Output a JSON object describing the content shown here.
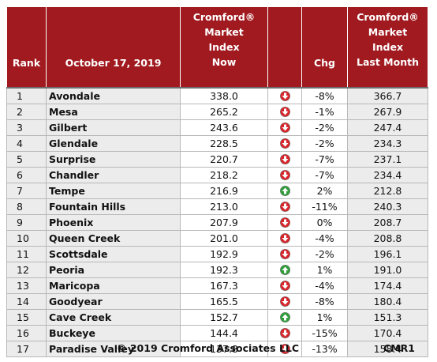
{
  "header": {
    "rank": "Rank",
    "date": "October 17, 2019",
    "now_lines": [
      "Cromford®",
      "Market",
      "Index",
      "Now"
    ],
    "chg": "Chg",
    "last_lines": [
      "Cromford®",
      "Market",
      "Index",
      "Last Month"
    ]
  },
  "rows": [
    {
      "rank": "1",
      "name": "Avondale",
      "now": "338.0",
      "dir": "down",
      "chg": "-8%",
      "last": "366.7"
    },
    {
      "rank": "2",
      "name": "Mesa",
      "now": "265.2",
      "dir": "down",
      "chg": "-1%",
      "last": "267.9"
    },
    {
      "rank": "3",
      "name": "Gilbert",
      "now": "243.6",
      "dir": "down",
      "chg": "-2%",
      "last": "247.4"
    },
    {
      "rank": "4",
      "name": "Glendale",
      "now": "228.5",
      "dir": "down",
      "chg": "-2%",
      "last": "234.3"
    },
    {
      "rank": "5",
      "name": "Surprise",
      "now": "220.7",
      "dir": "down",
      "chg": "-7%",
      "last": "237.1"
    },
    {
      "rank": "6",
      "name": "Chandler",
      "now": "218.2",
      "dir": "down",
      "chg": "-7%",
      "last": "234.4"
    },
    {
      "rank": "7",
      "name": "Tempe",
      "now": "216.9",
      "dir": "up",
      "chg": "2%",
      "last": "212.8"
    },
    {
      "rank": "8",
      "name": "Fountain Hills",
      "now": "213.0",
      "dir": "down",
      "chg": "-11%",
      "last": "240.3"
    },
    {
      "rank": "9",
      "name": "Phoenix",
      "now": "207.9",
      "dir": "down",
      "chg": "0%",
      "last": "208.7"
    },
    {
      "rank": "10",
      "name": "Queen Creek",
      "now": "201.0",
      "dir": "down",
      "chg": "-4%",
      "last": "208.8"
    },
    {
      "rank": "11",
      "name": "Scottsdale",
      "now": "192.9",
      "dir": "down",
      "chg": "-2%",
      "last": "196.1"
    },
    {
      "rank": "12",
      "name": "Peoria",
      "now": "192.3",
      "dir": "up",
      "chg": "1%",
      "last": "191.0"
    },
    {
      "rank": "13",
      "name": "Maricopa",
      "now": "167.3",
      "dir": "down",
      "chg": "-4%",
      "last": "174.4"
    },
    {
      "rank": "14",
      "name": "Goodyear",
      "now": "165.5",
      "dir": "down",
      "chg": "-8%",
      "last": "180.4"
    },
    {
      "rank": "15",
      "name": "Cave Creek",
      "now": "152.7",
      "dir": "up",
      "chg": "1%",
      "last": "151.3"
    },
    {
      "rank": "16",
      "name": "Buckeye",
      "now": "144.4",
      "dir": "down",
      "chg": "-15%",
      "last": "170.4"
    },
    {
      "rank": "17",
      "name": "Paradise Valley",
      "now": "137.8",
      "dir": "down",
      "chg": "-13%",
      "last": "158.4"
    }
  ],
  "footer": {
    "copyright": "© 2019 Cromford Associates LLC",
    "code": "CMR1"
  },
  "colors": {
    "header_bg": "#a11a1f",
    "down_icon": "#d7262b",
    "up_icon": "#2e9e3a"
  }
}
